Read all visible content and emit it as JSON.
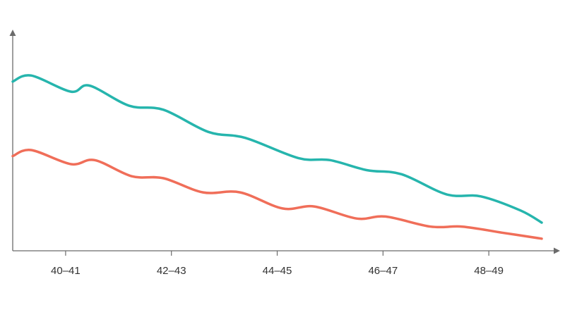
{
  "chart_data": {
    "type": "line",
    "title": "",
    "xlabel": "",
    "ylabel": "",
    "x_tick_labels": [
      "40–41",
      "42–43",
      "44–45",
      "46–47",
      "48–49"
    ],
    "x_tick_positions": [
      1,
      3,
      5,
      7,
      9
    ],
    "xlim": [
      0,
      10.2
    ],
    "ylim": [
      0,
      100
    ],
    "grid": false,
    "legend": "none",
    "series": [
      {
        "color": "#26b5ad",
        "x": [
          0,
          0.35,
          1.1,
          1.45,
          2.2,
          2.85,
          3.7,
          4.4,
          5.4,
          6.0,
          6.7,
          7.35,
          8.2,
          8.85,
          9.6,
          10.0
        ],
        "y": [
          84,
          87,
          79,
          82,
          72,
          70,
          59,
          56,
          46,
          45,
          40,
          38,
          28,
          27,
          20,
          14
        ]
      },
      {
        "color": "#f06e59",
        "x": [
          0,
          0.35,
          1.1,
          1.55,
          2.25,
          2.85,
          3.6,
          4.3,
          5.1,
          5.7,
          6.5,
          7.05,
          7.9,
          8.5,
          9.25,
          10.0
        ],
        "y": [
          47,
          50,
          43,
          45,
          37,
          36,
          29,
          29,
          21,
          22,
          16,
          17,
          12,
          12,
          9,
          6
        ]
      }
    ]
  }
}
